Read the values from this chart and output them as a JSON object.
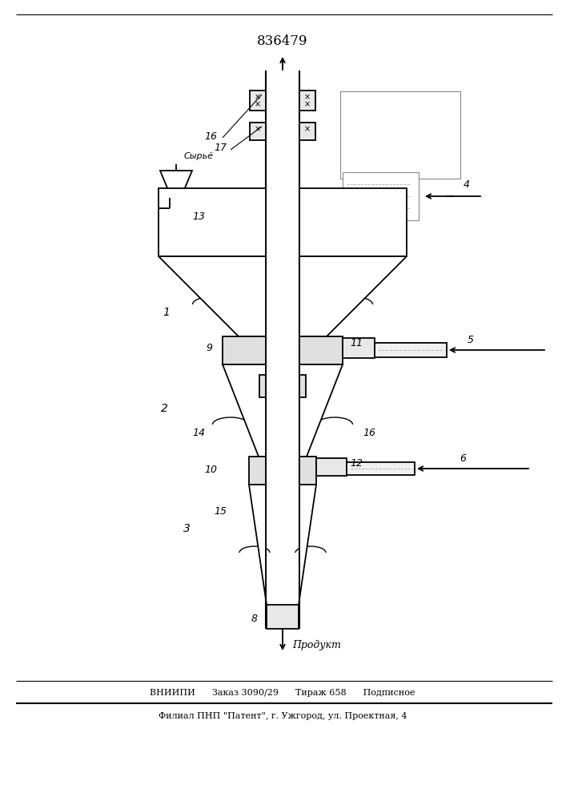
{
  "patent_number": "836479",
  "bottom_line1": "ВНИИПИ      Заказ 3090/29      Тираж 658      Подписное",
  "bottom_line2": "Филиал ПНП \"Патент\", г. Ужгород, ул. Проектная, 4",
  "label_bottom": "Продукт",
  "label_syrye": "Сырьё",
  "bg_color": "#ffffff",
  "line_color": "#000000",
  "fig_width": 7.07,
  "fig_height": 10.0,
  "dpi": 100
}
